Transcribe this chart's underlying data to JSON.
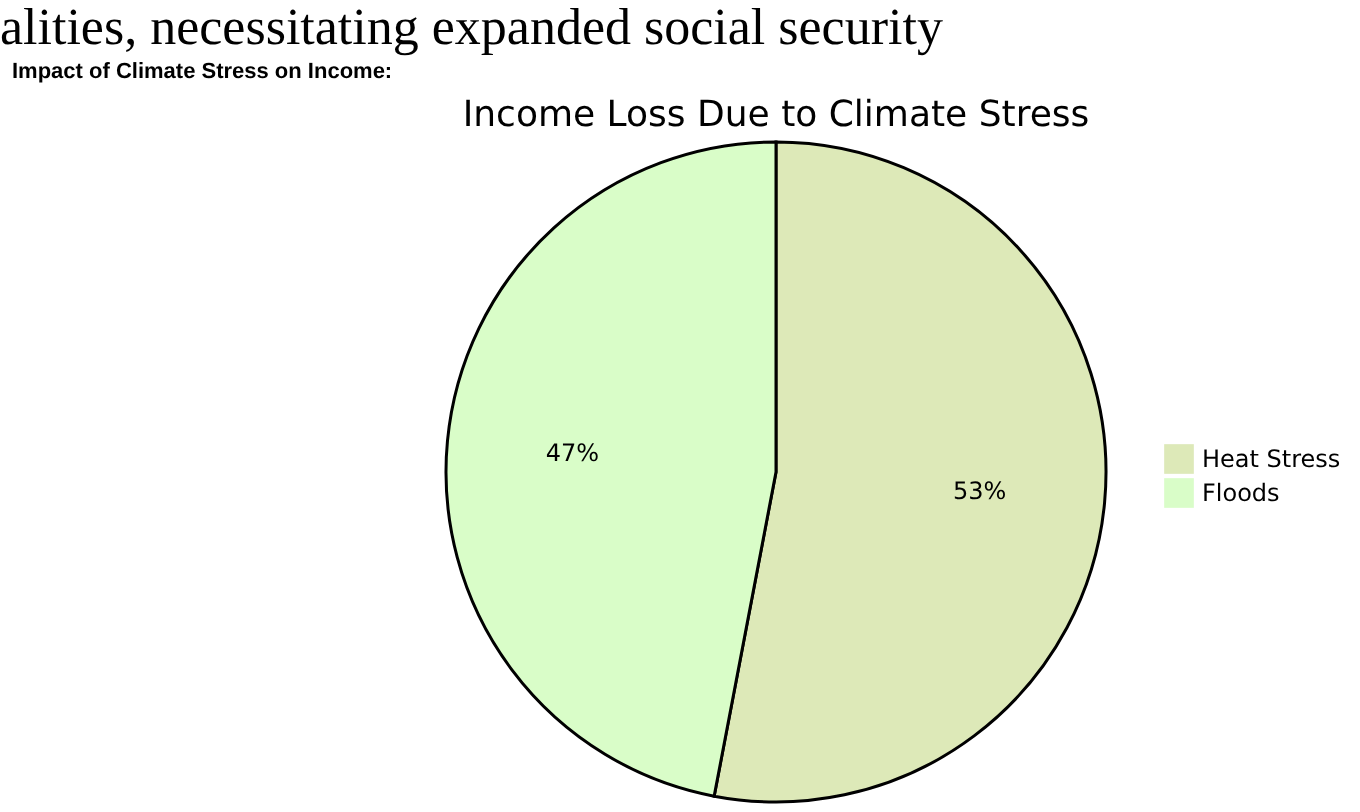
{
  "chart_data": {
    "type": "pie",
    "title": "Income Loss Due to Climate Stress",
    "subtitle": "Impact of Climate Stress on Income:",
    "annotations": [
      "alities, necessitating expanded social security"
    ],
    "categories": [
      "Heat Stress",
      "Floods"
    ],
    "values": [
      53,
      47
    ],
    "colors": [
      "#dde9b8",
      "#d9fdc8"
    ],
    "value_labels": [
      "53%",
      "47%"
    ],
    "legend": "right"
  }
}
